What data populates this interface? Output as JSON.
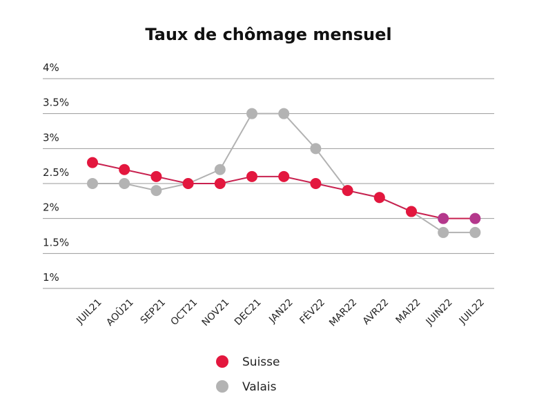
{
  "chart_data": {
    "type": "line",
    "title": "Taux de chômage mensuel",
    "xlabel": "",
    "ylabel": "",
    "categories": [
      "JUIL21",
      "AOÛ21",
      "SEP21",
      "OCT21",
      "NOV21",
      "DEC21",
      "JAN22",
      "FÉV22",
      "MAR22",
      "AVR22",
      "MAI22",
      "JUIN22",
      "JUIL22"
    ],
    "yticks": [
      "4%",
      "3.5%",
      "3%",
      "2.5%",
      "2%",
      "1.5%",
      "1%"
    ],
    "ytick_values": [
      4,
      3.5,
      3,
      2.5,
      2,
      1.5,
      1
    ],
    "ylim": [
      1,
      4
    ],
    "grid": true,
    "legend_position": "bottom",
    "series": [
      {
        "name": "Suisse",
        "values": [
          2.8,
          2.7,
          2.6,
          2.5,
          2.5,
          2.6,
          2.6,
          2.5,
          2.4,
          2.3,
          2.1,
          2.0,
          2.0
        ],
        "line_color": "#c8214f",
        "marker_color": "#e3173e",
        "overlap_marker_color": "#b4388c"
      },
      {
        "name": "Valais",
        "values": [
          2.5,
          2.5,
          2.4,
          2.5,
          2.7,
          3.5,
          3.5,
          3.0,
          2.4,
          2.3,
          2.1,
          1.8,
          1.8
        ],
        "line_color": "#b2b2b2",
        "marker_color": "#b3b3b3"
      }
    ]
  }
}
